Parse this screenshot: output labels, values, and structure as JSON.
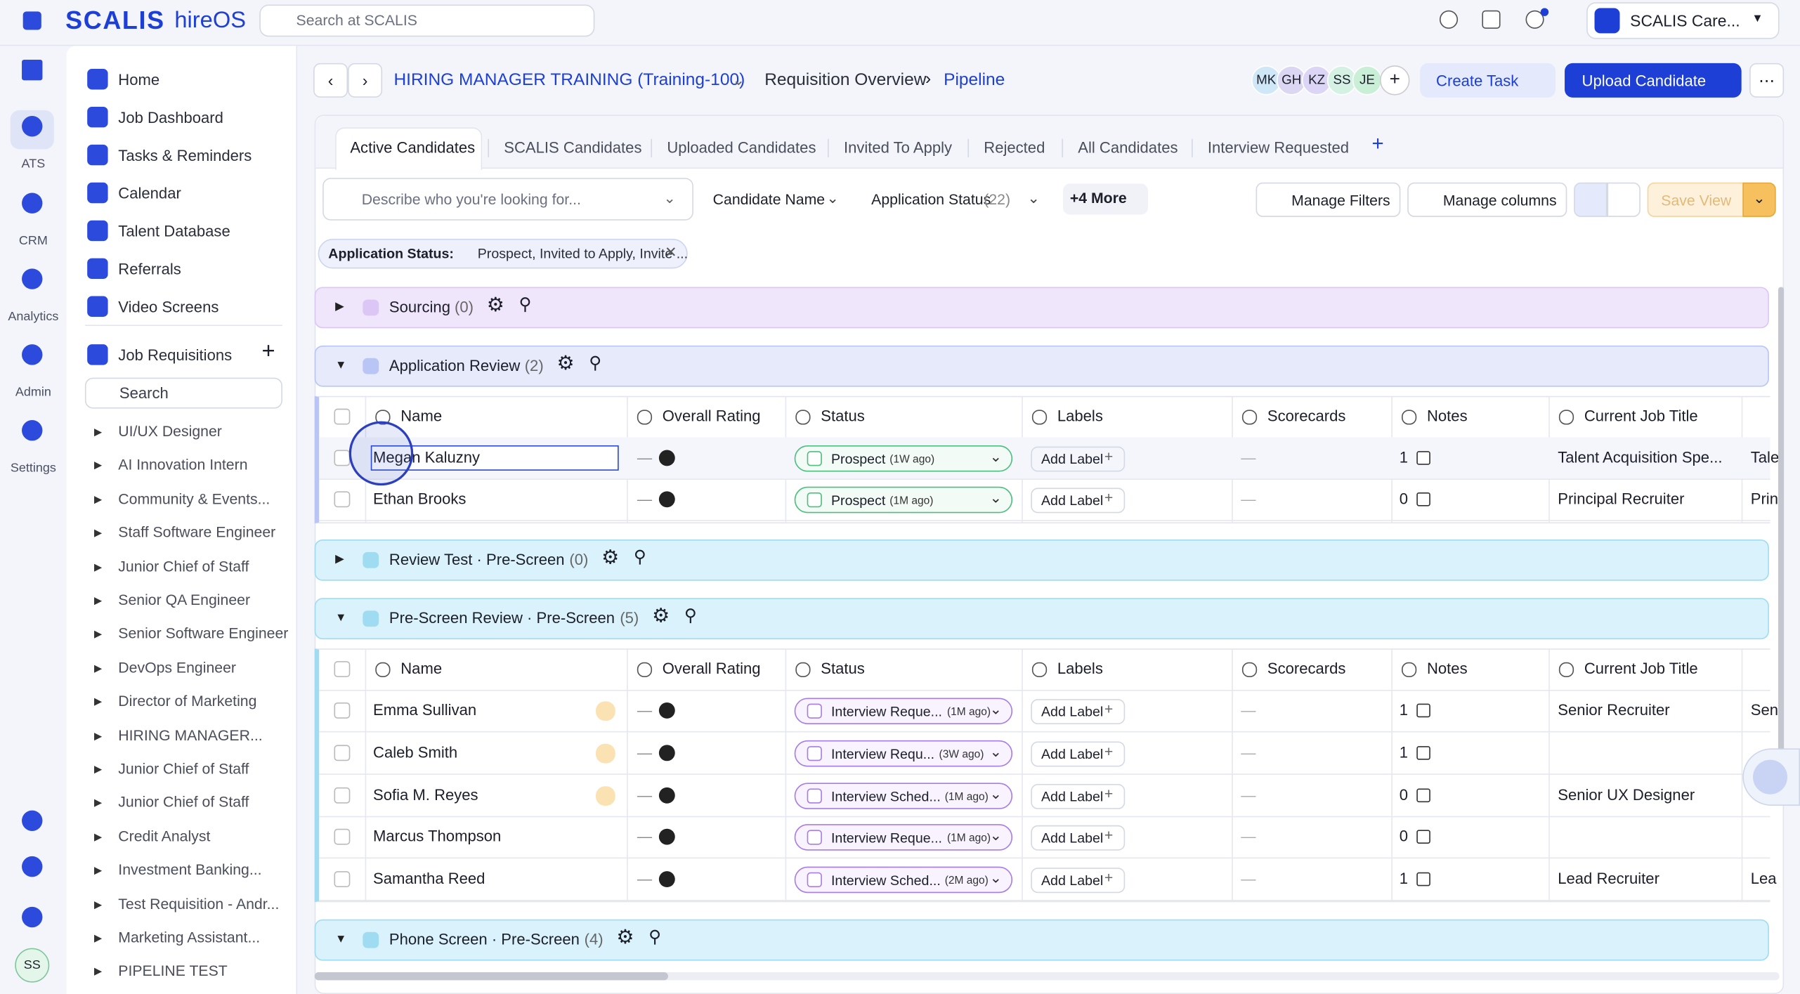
{
  "topbar": {
    "brand": "SCALIS",
    "product": "hireOS",
    "search": "Search at SCALIS",
    "account": "SCALIS Care..."
  },
  "rail": {
    "items": [
      "ATS",
      "CRM",
      "Analytics",
      "Admin",
      "Settings"
    ],
    "user": "SS"
  },
  "sidebar": {
    "nav": [
      "Home",
      "Job Dashboard",
      "Tasks & Reminders",
      "Calendar",
      "Talent Database",
      "Referrals",
      "Video Screens"
    ],
    "section": "Job Requisitions",
    "search": "Search",
    "requisitions": [
      "UI/UX Designer",
      "AI Innovation Intern",
      "Community & Events...",
      "Staff Software Engineer",
      "Junior Chief of Staff",
      "Senior QA Engineer",
      "Senior Software Engineer",
      "DevOps Engineer",
      "Director of Marketing",
      "HIRING MANAGER...",
      "Junior Chief of Staff",
      "Junior Chief of Staff",
      "Credit Analyst",
      "Investment Banking...",
      "Test Requisition - Andr...",
      "Marketing Assistant...",
      "PIPELINE TEST"
    ]
  },
  "header": {
    "requisition": "HIRING MANAGER TRAINING (Training-100)",
    "crumb": "Requisition Overview",
    "page": "Pipeline",
    "avatars": [
      "MK",
      "GH",
      "KZ",
      "SS",
      "JE"
    ],
    "create_task": "Create Task",
    "upload": "Upload Candidate"
  },
  "tabs": {
    "items": [
      "Active Candidates",
      "SCALIS Candidates",
      "Uploaded Candidates",
      "Invited To Apply",
      "Rejected",
      "All Candidates",
      "Interview Requested"
    ],
    "active": 0
  },
  "filters": {
    "search": "Describe who you're looking for...",
    "candidate_name": "Candidate Name",
    "status": "Application Status",
    "status_count": "(22)",
    "more": "+4 More",
    "manage_filters": "Manage Filters",
    "manage_columns": "Manage columns",
    "save_view": "Save View"
  },
  "chip": {
    "label": "Application Status:",
    "value": "Prospect, Invited to Apply, Invite ..."
  },
  "table": {
    "columns": [
      "Name",
      "Overall Rating",
      "Status",
      "Labels",
      "Scorecards",
      "Notes",
      "Current Job Title"
    ],
    "dash": "—",
    "add_label": "Add Label",
    "stages": [
      {
        "name": "Sourcing",
        "count": "(0)",
        "color": "#dcc6f5",
        "bg": "#efe6fb",
        "expanded": false,
        "candidates": []
      },
      {
        "name": "Application Review",
        "count": "(2)",
        "color": "#b9c6f5",
        "bg": "#e6eafb",
        "expanded": true,
        "candidates": [
          {
            "name": "Megan Kaluzny",
            "status": "Prospect",
            "age": "(1W ago)",
            "notes": 1,
            "title": "Talent Acquisition Spe...",
            "next": "Tale",
            "badge": false,
            "selected": true
          },
          {
            "name": "Ethan Brooks",
            "status": "Prospect",
            "age": "(1M ago)",
            "notes": 0,
            "title": "Principal Recruiter",
            "next": "Prin",
            "badge": false,
            "selected": false
          }
        ]
      },
      {
        "name": "Review Test · Pre-Screen",
        "count": "(0)",
        "color": "#9fdcf2",
        "bg": "#d9f2fb",
        "expanded": false,
        "candidates": []
      },
      {
        "name": "Pre-Screen Review · Pre-Screen",
        "count": "(5)",
        "color": "#9fdcf2",
        "bg": "#d9f2fb",
        "expanded": true,
        "candidates": [
          {
            "name": "Emma Sullivan",
            "status": "Interview Reque...",
            "age": "(1M ago)",
            "notes": 1,
            "title": "Senior Recruiter",
            "next": "Sen",
            "badge": true,
            "selected": false
          },
          {
            "name": "Caleb Smith",
            "status": "Interview Requ...",
            "age": "(3W ago)",
            "notes": 1,
            "title": "",
            "next": "",
            "badge": true,
            "selected": false
          },
          {
            "name": "Sofia M. Reyes",
            "status": "Interview Sched...",
            "age": "(1M ago)",
            "notes": 0,
            "title": "Senior UX Designer",
            "next": "",
            "badge": true,
            "selected": false
          },
          {
            "name": "Marcus Thompson",
            "status": "Interview Reque...",
            "age": "(1M ago)",
            "notes": 0,
            "title": "",
            "next": "",
            "badge": false,
            "selected": false
          },
          {
            "name": "Samantha Reed",
            "status": "Interview Sched...",
            "age": "(2M ago)",
            "notes": 1,
            "title": "Lead Recruiter",
            "next": "Lea",
            "badge": false,
            "selected": false
          }
        ]
      },
      {
        "name": "Phone Screen · Pre-Screen",
        "count": "(4)",
        "color": "#9fdcf2",
        "bg": "#d9f2fb",
        "expanded": true,
        "candidates": []
      }
    ]
  }
}
